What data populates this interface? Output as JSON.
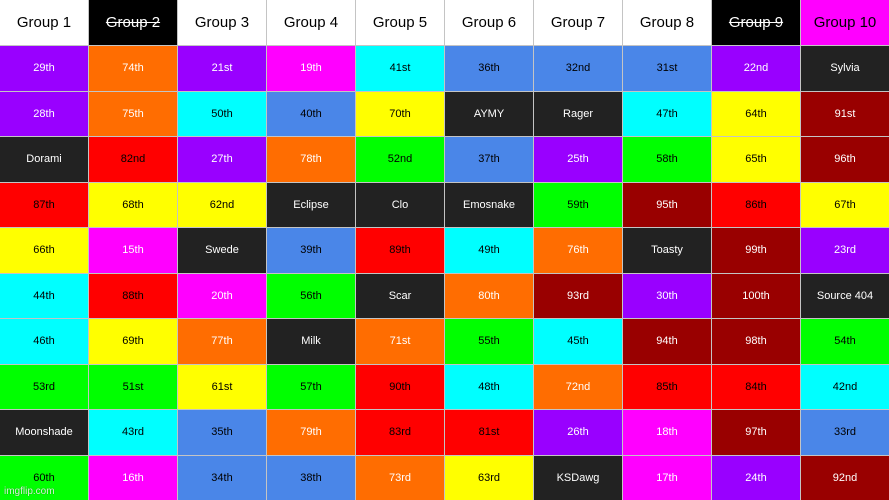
{
  "headers": [
    {
      "label": "Group 1",
      "bg": "#ffffff",
      "fg": "#000000",
      "struck": false
    },
    {
      "label": "Group 2",
      "bg": "#000000",
      "fg": "#ffffff",
      "struck": true
    },
    {
      "label": "Group 3",
      "bg": "#ffffff",
      "fg": "#000000",
      "struck": false
    },
    {
      "label": "Group 4",
      "bg": "#ffffff",
      "fg": "#000000",
      "struck": false
    },
    {
      "label": "Group 5",
      "bg": "#ffffff",
      "fg": "#000000",
      "struck": false
    },
    {
      "label": "Group 6",
      "bg": "#ffffff",
      "fg": "#000000",
      "struck": false
    },
    {
      "label": "Group 7",
      "bg": "#ffffff",
      "fg": "#000000",
      "struck": false
    },
    {
      "label": "Group 8",
      "bg": "#ffffff",
      "fg": "#000000",
      "struck": false
    },
    {
      "label": "Group 9",
      "bg": "#000000",
      "fg": "#ffffff",
      "struck": true
    },
    {
      "label": "Group 10",
      "bg": "#ff00ff",
      "fg": "#000000",
      "struck": false
    }
  ],
  "rows": [
    [
      [
        "29th",
        "purple"
      ],
      [
        "74th",
        "orange"
      ],
      [
        "21st",
        "purple"
      ],
      [
        "19th",
        "magenta"
      ],
      [
        "41st",
        "cyan"
      ],
      [
        "36th",
        "blue"
      ],
      [
        "32nd",
        "blue"
      ],
      [
        "31st",
        "blue"
      ],
      [
        "22nd",
        "purple"
      ],
      [
        "Sylvia",
        "dark"
      ]
    ],
    [
      [
        "28th",
        "purple"
      ],
      [
        "75th",
        "orange"
      ],
      [
        "50th",
        "cyan"
      ],
      [
        "40th",
        "blue"
      ],
      [
        "70th",
        "yellow"
      ],
      [
        "AYMY",
        "dark"
      ],
      [
        "Rager",
        "dark"
      ],
      [
        "47th",
        "cyan"
      ],
      [
        "64th",
        "yellow"
      ],
      [
        "91st",
        "maroon"
      ]
    ],
    [
      [
        "Dorami",
        "dark"
      ],
      [
        "82nd",
        "red"
      ],
      [
        "27th",
        "purple"
      ],
      [
        "78th",
        "orange"
      ],
      [
        "52nd",
        "green"
      ],
      [
        "37th",
        "blue"
      ],
      [
        "25th",
        "purple"
      ],
      [
        "58th",
        "green"
      ],
      [
        "65th",
        "yellow"
      ],
      [
        "96th",
        "maroon"
      ]
    ],
    [
      [
        "87th",
        "red"
      ],
      [
        "68th",
        "yellow"
      ],
      [
        "62nd",
        "yellow"
      ],
      [
        "Eclipse",
        "dark"
      ],
      [
        "Clo",
        "dark"
      ],
      [
        "Emosnake",
        "dark"
      ],
      [
        "59th",
        "green"
      ],
      [
        "95th",
        "maroon"
      ],
      [
        "86th",
        "red"
      ],
      [
        "67th",
        "yellow"
      ]
    ],
    [
      [
        "66th",
        "yellow"
      ],
      [
        "15th",
        "magenta"
      ],
      [
        "Swede",
        "dark"
      ],
      [
        "39th",
        "blue"
      ],
      [
        "89th",
        "red"
      ],
      [
        "49th",
        "cyan"
      ],
      [
        "76th",
        "orange"
      ],
      [
        "Toasty",
        "dark"
      ],
      [
        "99th",
        "maroon"
      ],
      [
        "23rd",
        "purple"
      ]
    ],
    [
      [
        "44th",
        "cyan"
      ],
      [
        "88th",
        "red"
      ],
      [
        "20th",
        "magenta"
      ],
      [
        "56th",
        "green"
      ],
      [
        "Scar",
        "dark"
      ],
      [
        "80th",
        "orange"
      ],
      [
        "93rd",
        "maroon"
      ],
      [
        "30th",
        "purple"
      ],
      [
        "100th",
        "maroon"
      ],
      [
        "Source 404",
        "dark"
      ]
    ],
    [
      [
        "46th",
        "cyan"
      ],
      [
        "69th",
        "yellow"
      ],
      [
        "77th",
        "orange"
      ],
      [
        "Milk",
        "dark"
      ],
      [
        "71st",
        "orange"
      ],
      [
        "55th",
        "green"
      ],
      [
        "45th",
        "cyan"
      ],
      [
        "94th",
        "maroon"
      ],
      [
        "98th",
        "maroon"
      ],
      [
        "54th",
        "green"
      ]
    ],
    [
      [
        "53rd",
        "green"
      ],
      [
        "51st",
        "green"
      ],
      [
        "61st",
        "yellow"
      ],
      [
        "57th",
        "green"
      ],
      [
        "90th",
        "red"
      ],
      [
        "48th",
        "cyan"
      ],
      [
        "72nd",
        "orange"
      ],
      [
        "85th",
        "red"
      ],
      [
        "84th",
        "red"
      ],
      [
        "42nd",
        "cyan"
      ]
    ],
    [
      [
        "Moonshade",
        "dark"
      ],
      [
        "43rd",
        "cyan"
      ],
      [
        "35th",
        "blue"
      ],
      [
        "79th",
        "orange"
      ],
      [
        "83rd",
        "red"
      ],
      [
        "81st",
        "red"
      ],
      [
        "26th",
        "purple"
      ],
      [
        "18th",
        "magenta"
      ],
      [
        "97th",
        "maroon"
      ],
      [
        "33rd",
        "blue"
      ]
    ],
    [
      [
        "60th",
        "green"
      ],
      [
        "16th",
        "magenta"
      ],
      [
        "34th",
        "blue"
      ],
      [
        "38th",
        "blue"
      ],
      [
        "73rd",
        "orange"
      ],
      [
        "63rd",
        "yellow"
      ],
      [
        "KSDawg",
        "dark"
      ],
      [
        "17th",
        "magenta"
      ],
      [
        "24th",
        "purple"
      ],
      [
        "92nd",
        "maroon"
      ]
    ]
  ],
  "palette": {
    "purple": {
      "bg": "#9900ff",
      "fg": "#ffffff"
    },
    "orange": {
      "bg": "#ff6d01",
      "fg": "#ffffff"
    },
    "magenta": {
      "bg": "#ff00ff",
      "fg": "#ffffff"
    },
    "cyan": {
      "bg": "#00ffff",
      "fg": "#000000"
    },
    "blue": {
      "bg": "#4a86e8",
      "fg": "#000000"
    },
    "dark": {
      "bg": "#222222",
      "fg": "#ffffff"
    },
    "yellow": {
      "bg": "#ffff00",
      "fg": "#000000"
    },
    "maroon": {
      "bg": "#990000",
      "fg": "#ffffff"
    },
    "red": {
      "bg": "#ff0000",
      "fg": "#000000"
    },
    "green": {
      "bg": "#00ff00",
      "fg": "#000000"
    }
  },
  "watermark": "imgflip.com"
}
